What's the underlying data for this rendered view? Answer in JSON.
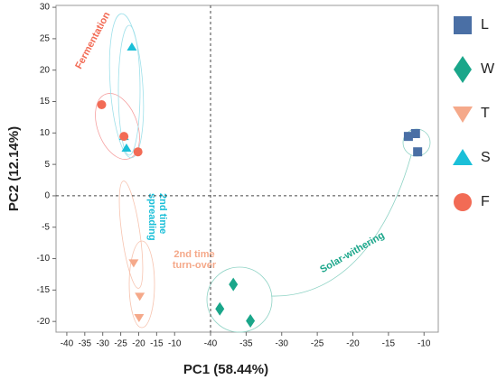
{
  "chart_data": {
    "type": "scatter",
    "xlabel": "PC1 (58.44%)",
    "ylabel": "PC2 (12.14%)",
    "xlim": [
      -43,
      0
    ],
    "xticks": [
      -40,
      -35,
      -30,
      -25,
      -20,
      -15,
      -10
    ],
    "x2lim": [
      -40,
      -8
    ],
    "x2ticks": [
      -40,
      -35,
      -30,
      -25,
      -20,
      -15,
      -10
    ],
    "ylim": [
      -21.7,
      30.3
    ],
    "yticks": [
      -20,
      -15,
      -10,
      -5,
      0,
      5,
      10,
      15,
      20,
      25,
      30
    ],
    "series": [
      {
        "name": "L",
        "color": "#4a6fa5",
        "marker": "square",
        "axis": "x2",
        "x": [
          -12.2,
          -11.2,
          -10.9
        ],
        "y": [
          9.45,
          9.9,
          7.0
        ]
      },
      {
        "name": "W",
        "color": "#1aa68a",
        "marker": "diamond",
        "axis": "x2",
        "x": [
          -36.8,
          -38.7,
          -34.4
        ],
        "y": [
          -14.1,
          -18.0,
          -19.9
        ]
      },
      {
        "name": "T",
        "color": "#f5a98a",
        "marker": "triangle-down",
        "x": [
          -21.4,
          -19.7,
          -19.9
        ],
        "y": [
          -10.7,
          -16.0,
          -19.4
        ]
      },
      {
        "name": "S",
        "color": "#1bbfd8",
        "marker": "triangle-up",
        "x": [
          -21.9,
          -24.1,
          -23.4
        ],
        "y": [
          23.7,
          9.45,
          7.6
        ]
      },
      {
        "name": "F",
        "color": "#f26b55",
        "marker": "circle",
        "x": [
          -30.3,
          -24.1,
          -20.2
        ],
        "y": [
          14.5,
          9.45,
          7.0
        ]
      }
    ],
    "annotations": [
      "Fermentation",
      "2nd time spreading",
      "2nd time turn-over",
      "Solar-withering"
    ]
  }
}
